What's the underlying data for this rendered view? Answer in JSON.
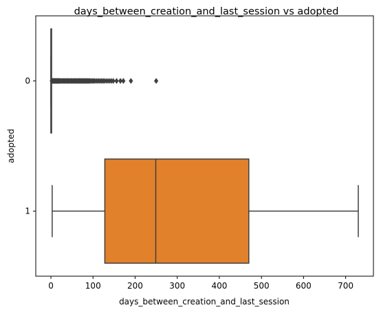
{
  "chart_data": {
    "type": "box",
    "orientation": "horizontal",
    "title": "days_between_creation_and_last_session vs adopted",
    "xlabel": "days_between_creation_and_last_session",
    "ylabel": "adopted",
    "xlim": [
      -36,
      766
    ],
    "xticks": [
      0,
      100,
      200,
      300,
      400,
      500,
      600,
      700
    ],
    "categories": [
      "0",
      "1"
    ],
    "boxes": [
      {
        "category": "0",
        "color": "#3274a1",
        "whisker_low": 0,
        "q1": 0,
        "median": 0,
        "q3": 1,
        "whisker_high": 1,
        "outliers": [
          2,
          3,
          4,
          5,
          6,
          7,
          8,
          9,
          10,
          11,
          12,
          13,
          14,
          15,
          16,
          17,
          18,
          19,
          20,
          22,
          24,
          26,
          28,
          30,
          32,
          34,
          36,
          38,
          40,
          42,
          44,
          46,
          48,
          50,
          52,
          54,
          56,
          58,
          60,
          62,
          64,
          66,
          68,
          70,
          72,
          74,
          76,
          78,
          80,
          82,
          84,
          86,
          88,
          90,
          92,
          95,
          98,
          101,
          104,
          108,
          112,
          116,
          120,
          124,
          128,
          133,
          138,
          143,
          148,
          156,
          165,
          172,
          190,
          250
        ]
      },
      {
        "category": "1",
        "color": "#e1812c",
        "whisker_low": 3,
        "q1": 128,
        "median": 249,
        "q3": 470,
        "whisker_high": 730,
        "outliers": []
      }
    ],
    "grid": false
  }
}
